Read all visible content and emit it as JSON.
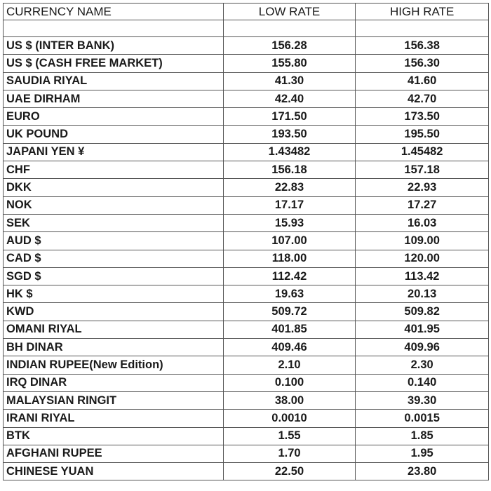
{
  "header": {
    "name": "CURRENCY NAME",
    "low": "LOW RATE",
    "high": "HIGH RATE"
  },
  "rows": [
    {
      "name": "US $ (INTER BANK)",
      "low": "156.28",
      "high": "156.38"
    },
    {
      "name": "US $ (CASH FREE MARKET)",
      "low": "155.80",
      "high": "156.30"
    },
    {
      "name": "SAUDIA RIYAL",
      "low": "41.30",
      "high": "41.60"
    },
    {
      "name": "UAE DIRHAM",
      "low": "42.40",
      "high": "42.70"
    },
    {
      "name": "EURO",
      "low": "171.50",
      "high": "173.50"
    },
    {
      "name": "UK POUND",
      "low": "193.50",
      "high": "195.50"
    },
    {
      "name": "JAPANI YEN ¥",
      "low": "1.43482",
      "high": "1.45482"
    },
    {
      "name": "CHF",
      "low": "156.18",
      "high": "157.18"
    },
    {
      "name": "DKK",
      "low": "22.83",
      "high": "22.93"
    },
    {
      "name": "NOK",
      "low": "17.17",
      "high": "17.27"
    },
    {
      "name": "SEK",
      "low": "15.93",
      "high": "16.03"
    },
    {
      "name": "AUD $",
      "low": "107.00",
      "high": "109.00"
    },
    {
      "name": "CAD $",
      "low": "118.00",
      "high": "120.00"
    },
    {
      "name": "SGD $",
      "low": "112.42",
      "high": "113.42"
    },
    {
      "name": "HK $",
      "low": "19.63",
      "high": "20.13"
    },
    {
      "name": "KWD",
      "low": "509.72",
      "high": "509.82"
    },
    {
      "name": "OMANI RIYAL",
      "low": "401.85",
      "high": "401.95"
    },
    {
      "name": "BH DINAR",
      "low": "409.46",
      "high": "409.96"
    },
    {
      "name": "INDIAN RUPEE(New Edition)",
      "low": "2.10",
      "high": "2.30"
    },
    {
      "name": "IRQ DINAR",
      "low": "0.100",
      "high": "0.140"
    },
    {
      "name": "MALAYSIAN RINGIT",
      "low": "38.00",
      "high": "39.30"
    },
    {
      "name": "IRANI RIYAL",
      "low": "0.0010",
      "high": "0.0015"
    },
    {
      "name": "BTK",
      "low": "1.55",
      "high": "1.85"
    },
    {
      "name": "AFGHANI RUPEE",
      "low": "1.70",
      "high": "1.95"
    },
    {
      "name": "CHINESE YUAN",
      "low": "22.50",
      "high": "23.80"
    }
  ]
}
